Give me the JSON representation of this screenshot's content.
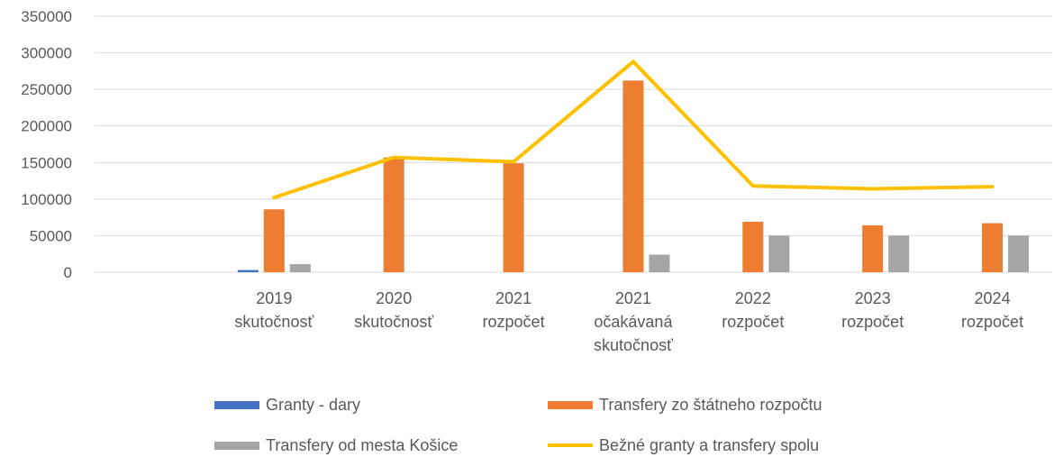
{
  "chart_data": {
    "type": "bar",
    "categories": [
      [
        "",
        ""
      ],
      [
        "2019",
        "skutočnosť"
      ],
      [
        "2020",
        "skutočnosť"
      ],
      [
        "2021",
        "rozpočet"
      ],
      [
        "2021",
        "očakávaná",
        "skutočnosť"
      ],
      [
        "2022",
        "rozpočet"
      ],
      [
        "2023",
        "rozpočet"
      ],
      [
        "2024",
        "rozpočet"
      ]
    ],
    "series": [
      {
        "name": "Granty - dary",
        "type": "bar",
        "color": "#4472C4",
        "values": [
          0,
          3000,
          0,
          0,
          0,
          0,
          0,
          0
        ]
      },
      {
        "name": "Transfery zo štátneho rozpočtu",
        "type": "bar",
        "color": "#ED7D31",
        "values": [
          0,
          86000,
          157000,
          149000,
          262000,
          69000,
          64000,
          67000
        ]
      },
      {
        "name": "Transfery od mesta Košice",
        "type": "bar",
        "color": "#A5A5A5",
        "values": [
          0,
          11000,
          0,
          0,
          24000,
          50000,
          50000,
          50000
        ]
      },
      {
        "name": "Bežné granty a transfery spolu",
        "type": "line",
        "color": "#FFC000",
        "values": [
          null,
          102000,
          157000,
          151000,
          288000,
          118000,
          114000,
          117000
        ]
      }
    ],
    "yticks": [
      "350000",
      "300000",
      "250000",
      "200000",
      "150000",
      "100000",
      "50000",
      "0"
    ],
    "ylim": [
      0,
      350000
    ],
    "grid": true,
    "legend_position": "bottom"
  }
}
